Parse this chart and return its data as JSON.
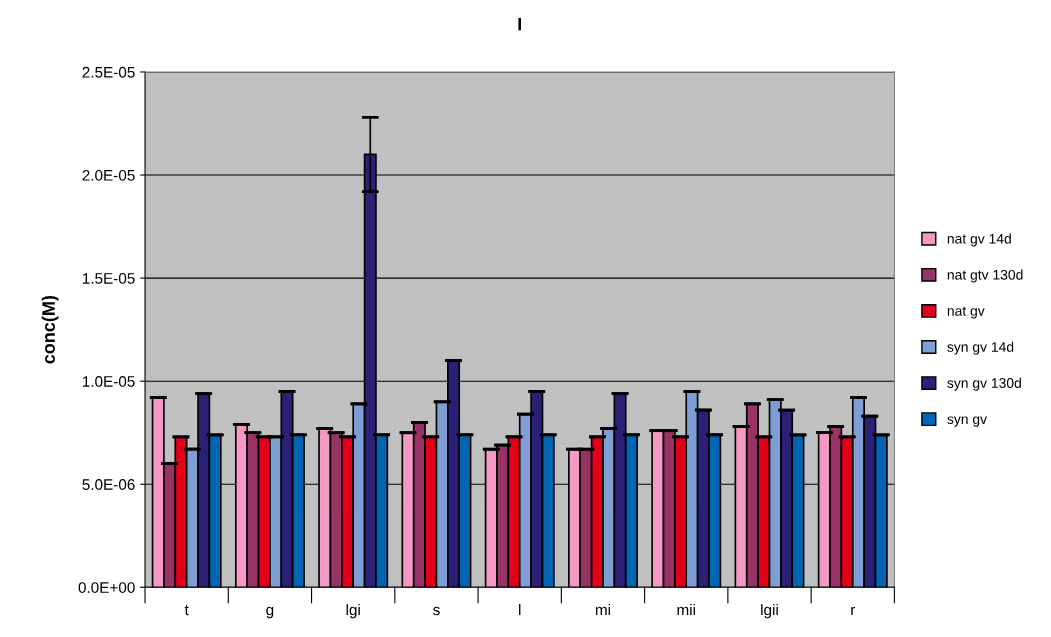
{
  "chart_data": {
    "type": "bar",
    "title": "I",
    "ylabel": "conc(M)",
    "categories": [
      "t",
      "g",
      "lgi",
      "s",
      "l",
      "mi",
      "mii",
      "lgii",
      "r"
    ],
    "series": [
      {
        "name": "nat gv 14d",
        "color": "#f399c4",
        "values": [
          9.2e-06,
          7.9e-06,
          7.7e-06,
          7.5e-06,
          6.7e-06,
          6.7e-06,
          7.6e-06,
          7.8e-06,
          7.5e-06
        ],
        "errors": [
          0,
          0,
          0,
          0,
          0,
          0,
          0,
          0,
          0
        ]
      },
      {
        "name": "nat gtv 130d",
        "color": "#993366",
        "values": [
          6e-06,
          7.5e-06,
          7.5e-06,
          8e-06,
          6.9e-06,
          6.7e-06,
          7.6e-06,
          8.9e-06,
          7.8e-06
        ],
        "errors": [
          0,
          0,
          0,
          0,
          0,
          0,
          0,
          0,
          0
        ]
      },
      {
        "name": "nat gv",
        "color": "#e3001b",
        "values": [
          7.3e-06,
          7.3e-06,
          7.3e-06,
          7.3e-06,
          7.3e-06,
          7.3e-06,
          7.3e-06,
          7.3e-06,
          7.3e-06
        ],
        "errors": [
          0,
          0,
          0,
          0,
          0,
          0,
          0,
          0,
          0
        ]
      },
      {
        "name": "syn gv 14d",
        "color": "#7f9fd4",
        "values": [
          6.7e-06,
          7.3e-06,
          8.9e-06,
          9e-06,
          8.4e-06,
          7.7e-06,
          9.5e-06,
          9.1e-06,
          9.2e-06
        ],
        "errors": [
          0,
          0,
          0,
          0,
          0,
          0,
          0,
          0,
          0
        ]
      },
      {
        "name": "syn gv 130d",
        "color": "#2a2177",
        "values": [
          9.4e-06,
          9.5e-06,
          2.1e-05,
          1.1e-05,
          9.5e-06,
          9.4e-06,
          8.6e-06,
          8.6e-06,
          8.3e-06
        ],
        "errors": [
          0,
          0,
          1.8e-06,
          0,
          0,
          0,
          0,
          0,
          0
        ]
      },
      {
        "name": "syn gv",
        "color": "#0066b3",
        "values": [
          7.4e-06,
          7.4e-06,
          7.4e-06,
          7.4e-06,
          7.4e-06,
          7.4e-06,
          7.4e-06,
          7.4e-06,
          7.4e-06
        ],
        "errors": [
          0,
          0,
          0,
          0,
          0,
          0,
          0,
          0,
          0
        ]
      }
    ],
    "ylim": [
      0,
      2.5e-05
    ],
    "yticks": [
      {
        "value": 0,
        "label": "0.0E+00"
      },
      {
        "value": 5e-06,
        "label": "5.0E-06"
      },
      {
        "value": 1e-05,
        "label": "1.0E-05"
      },
      {
        "value": 1.5e-05,
        "label": "1.5E-05"
      },
      {
        "value": 2e-05,
        "label": "2.0E-05"
      },
      {
        "value": 2.5e-05,
        "label": "2.5E-05"
      }
    ],
    "grid": "y",
    "legend": "right"
  }
}
